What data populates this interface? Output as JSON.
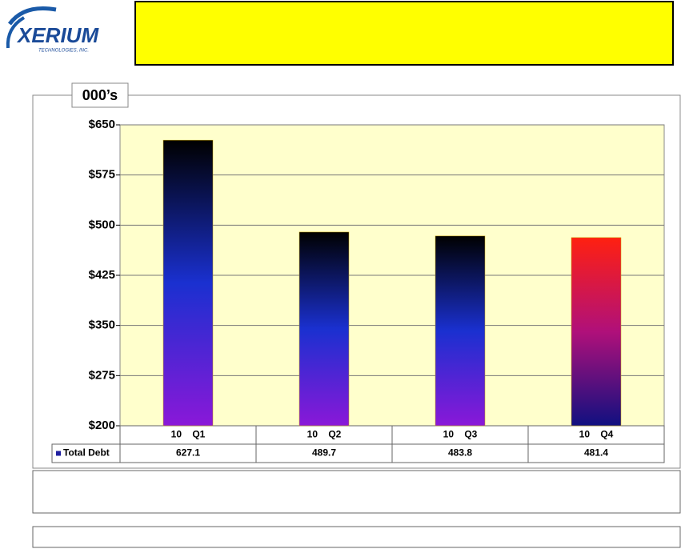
{
  "logo": {
    "name": "XERIUM",
    "tagline": "TECHNOLOGIES, INC."
  },
  "chart_data": {
    "type": "bar",
    "unit_label": "000’s",
    "categories": [
      "10    Q1",
      "10    Q2",
      "10    Q3",
      "10    Q4"
    ],
    "series": [
      {
        "name": "Total Debt",
        "color": "#1f1fa0",
        "values": [
          627.1,
          489.7,
          483.8,
          481.4
        ],
        "gradients": [
          [
            "#000000",
            "#1a30d0",
            "#8a18d8"
          ],
          [
            "#000000",
            "#1a30d0",
            "#8a18d8"
          ],
          [
            "#000000",
            "#1a30d0",
            "#8a18d8"
          ],
          [
            "#ff2010",
            "#b0107a",
            "#101080"
          ]
        ]
      }
    ],
    "ylim": [
      200,
      650
    ],
    "yticks": [
      {
        "value": 200,
        "label": "$200"
      },
      {
        "value": 275,
        "label": "$275"
      },
      {
        "value": 350,
        "label": "$350"
      },
      {
        "value": 425,
        "label": "$425"
      },
      {
        "value": 500,
        "label": "$500"
      },
      {
        "value": 575,
        "label": "$575"
      },
      {
        "value": 650,
        "label": "$650"
      }
    ],
    "grid": true,
    "plot_background": "#ffffcc"
  }
}
